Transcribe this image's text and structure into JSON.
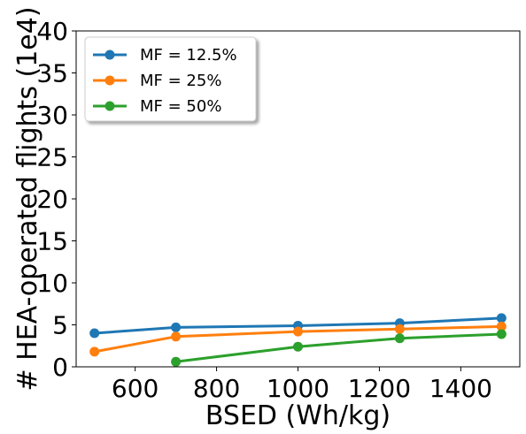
{
  "chart_data": {
    "type": "line",
    "title": "",
    "xlabel": "BSED (Wh/kg)",
    "ylabel": "# HEA-operated flights (1e4)",
    "xlim": [
      455,
      1545
    ],
    "ylim": [
      0,
      40
    ],
    "xticks": [
      600,
      800,
      1000,
      1200,
      1400
    ],
    "yticks": [
      0,
      5,
      10,
      15,
      20,
      25,
      30,
      35,
      40
    ],
    "grid": false,
    "legend_position": "upper-left",
    "series": [
      {
        "name": "MF = 12.5%",
        "color": "#1f77b4",
        "x": [
          500,
          700,
          1000,
          1250,
          1500
        ],
        "y": [
          4.0,
          4.7,
          4.9,
          5.2,
          5.8
        ]
      },
      {
        "name": "MF = 25%",
        "color": "#ff7f0e",
        "x": [
          500,
          700,
          1000,
          1250,
          1500
        ],
        "y": [
          1.8,
          3.6,
          4.2,
          4.5,
          4.8
        ]
      },
      {
        "name": "MF = 50%",
        "color": "#2ca02c",
        "x": [
          700,
          1000,
          1250,
          1500
        ],
        "y": [
          0.6,
          2.4,
          3.4,
          3.9
        ]
      }
    ]
  }
}
